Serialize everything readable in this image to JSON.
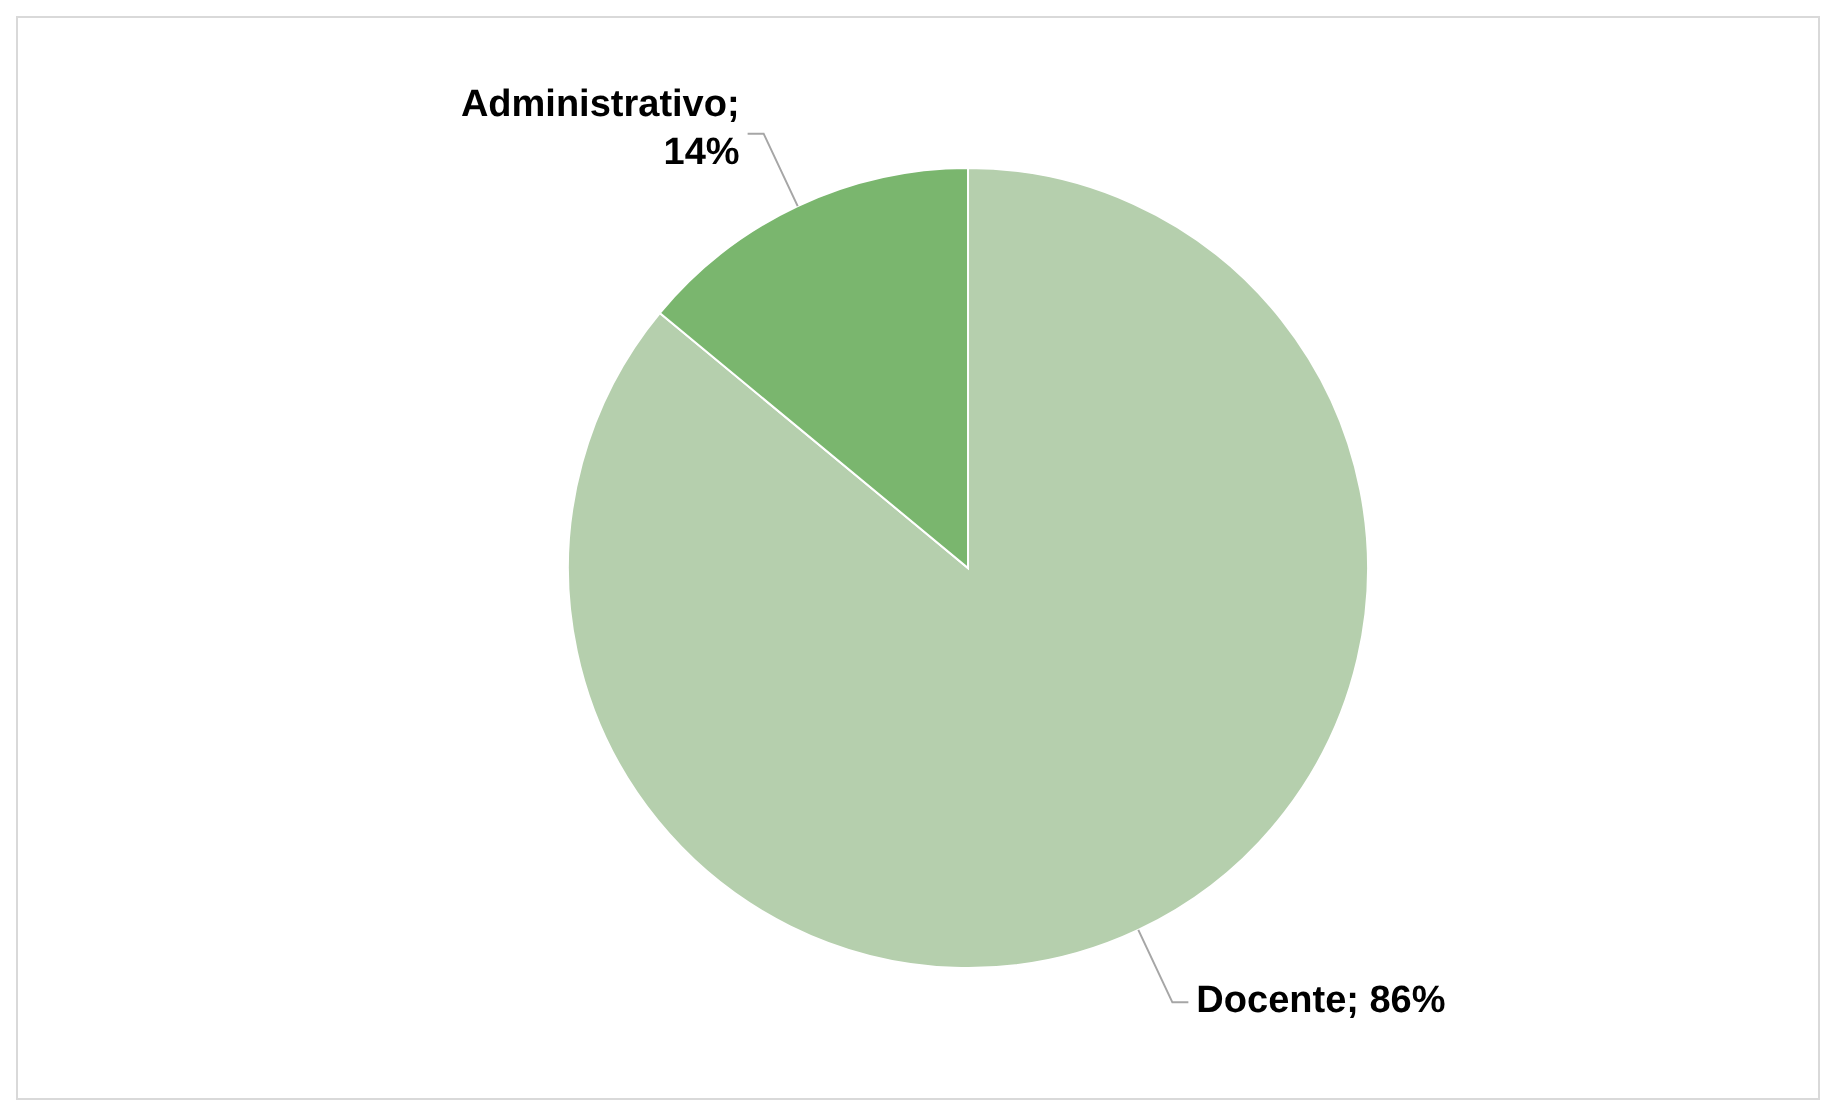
{
  "chart_data": {
    "type": "pie",
    "categories": [
      "Docente",
      "Administrativo"
    ],
    "values": [
      86,
      14
    ],
    "colors": [
      "#b5cfad",
      "#7ab66e"
    ],
    "value_labels": [
      "; 86%",
      "; 14%"
    ],
    "legend": false
  }
}
